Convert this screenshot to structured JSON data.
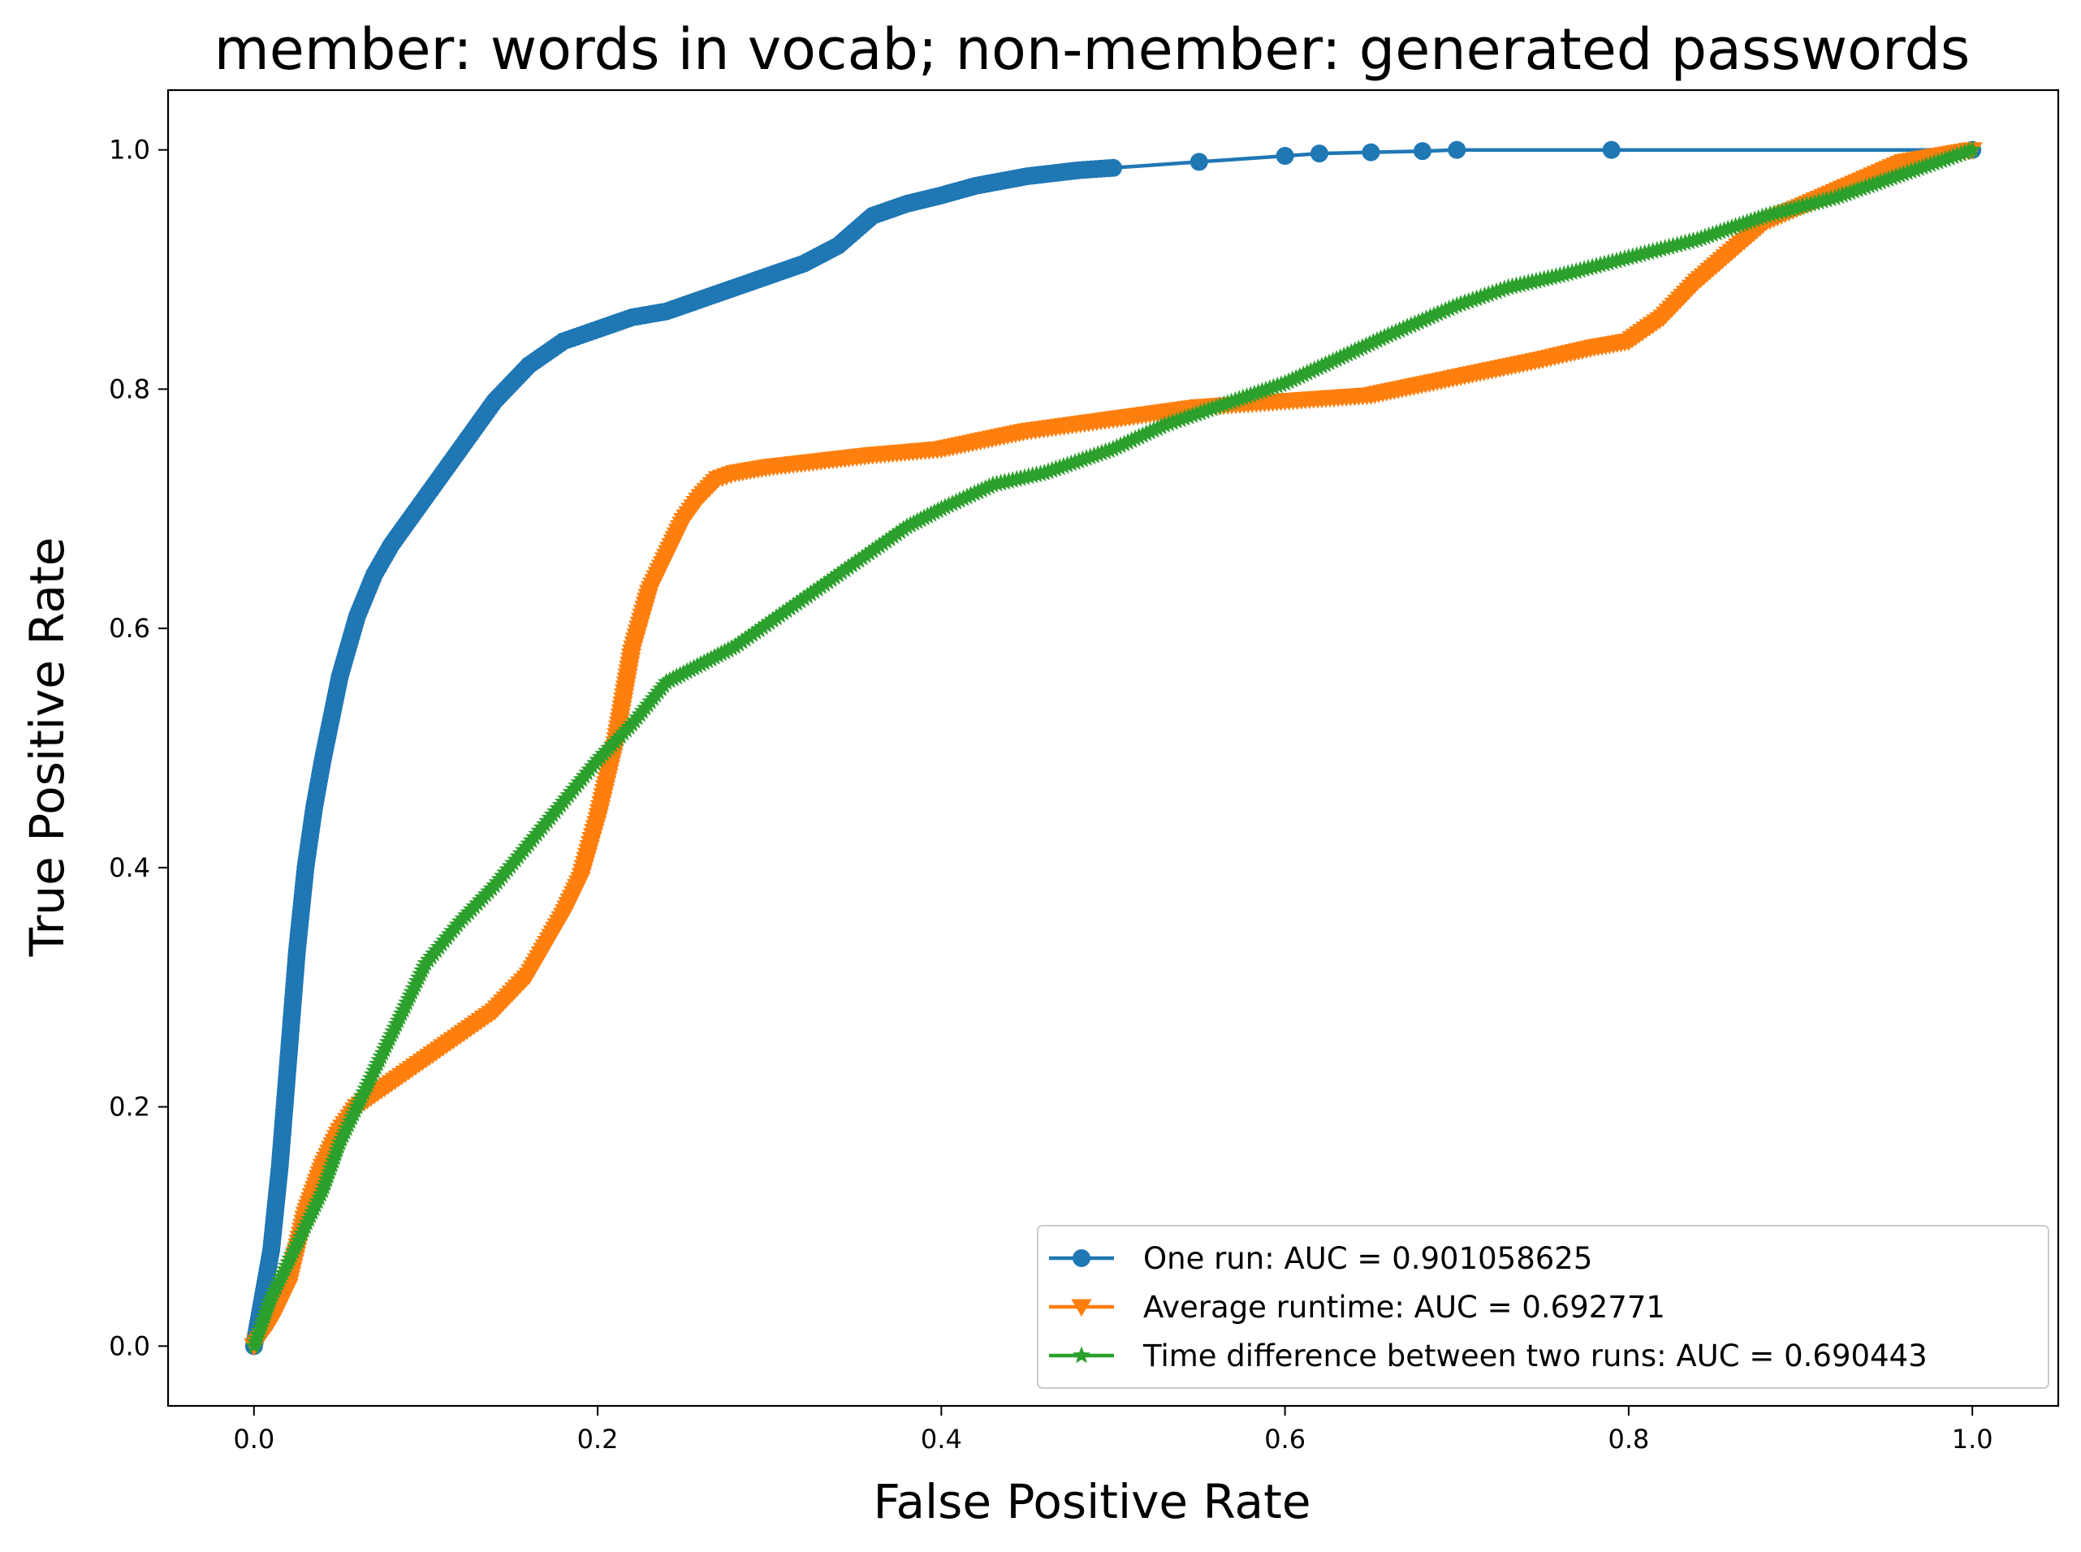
{
  "chart_data": {
    "type": "line",
    "title": "member: words in vocab; non-member: generated passwords",
    "xlabel": "False Positive Rate",
    "ylabel": "True Positive Rate",
    "xlim": [
      -0.05,
      1.05
    ],
    "ylim": [
      -0.05,
      1.05
    ],
    "xticks": [
      0.0,
      0.2,
      0.4,
      0.6,
      0.8,
      1.0
    ],
    "yticks": [
      0.0,
      0.2,
      0.4,
      0.6,
      0.8,
      1.0
    ],
    "xtick_labels": [
      "0.0",
      "0.2",
      "0.4",
      "0.6",
      "0.8",
      "1.0"
    ],
    "ytick_labels": [
      "0.0",
      "0.2",
      "0.4",
      "0.6",
      "0.8",
      "1.0"
    ],
    "grid": false,
    "legend_position": "lower-right",
    "series": [
      {
        "name": "One run: AUC = 0.901058625",
        "color": "#1f77b4",
        "marker": "circle",
        "x": [
          0.0,
          0.005,
          0.01,
          0.015,
          0.02,
          0.025,
          0.03,
          0.035,
          0.04,
          0.05,
          0.06,
          0.07,
          0.08,
          0.09,
          0.1,
          0.11,
          0.12,
          0.13,
          0.14,
          0.15,
          0.16,
          0.17,
          0.18,
          0.19,
          0.2,
          0.22,
          0.24,
          0.26,
          0.28,
          0.3,
          0.32,
          0.34,
          0.36,
          0.38,
          0.4,
          0.42,
          0.45,
          0.48,
          0.5,
          0.55,
          0.6,
          0.62,
          0.65,
          0.68,
          0.7,
          0.79,
          1.0
        ],
        "y": [
          0.0,
          0.04,
          0.08,
          0.15,
          0.24,
          0.33,
          0.4,
          0.45,
          0.49,
          0.56,
          0.61,
          0.645,
          0.67,
          0.69,
          0.71,
          0.73,
          0.75,
          0.77,
          0.79,
          0.805,
          0.82,
          0.83,
          0.84,
          0.845,
          0.85,
          0.86,
          0.865,
          0.875,
          0.885,
          0.895,
          0.905,
          0.92,
          0.945,
          0.955,
          0.962,
          0.97,
          0.978,
          0.983,
          0.985,
          0.99,
          0.995,
          0.997,
          0.998,
          0.999,
          1.0,
          1.0,
          1.0
        ]
      },
      {
        "name": "Average runtime: AUC = 0.692771",
        "color": "#ff7f0e",
        "marker": "triangle-down",
        "x": [
          0.0,
          0.01,
          0.02,
          0.03,
          0.04,
          0.05,
          0.06,
          0.08,
          0.1,
          0.12,
          0.14,
          0.16,
          0.18,
          0.19,
          0.2,
          0.21,
          0.22,
          0.23,
          0.24,
          0.25,
          0.26,
          0.27,
          0.28,
          0.3,
          0.33,
          0.36,
          0.4,
          0.45,
          0.5,
          0.55,
          0.6,
          0.65,
          0.7,
          0.75,
          0.78,
          0.8,
          0.82,
          0.84,
          0.86,
          0.88,
          0.92,
          0.96,
          1.0
        ],
        "y": [
          0.0,
          0.02,
          0.05,
          0.11,
          0.15,
          0.18,
          0.2,
          0.22,
          0.24,
          0.26,
          0.28,
          0.31,
          0.36,
          0.39,
          0.44,
          0.5,
          0.58,
          0.63,
          0.66,
          0.69,
          0.71,
          0.725,
          0.73,
          0.735,
          0.74,
          0.745,
          0.75,
          0.765,
          0.775,
          0.785,
          0.79,
          0.795,
          0.81,
          0.825,
          0.835,
          0.84,
          0.86,
          0.89,
          0.915,
          0.94,
          0.965,
          0.99,
          1.0
        ]
      },
      {
        "name": "Time difference between two runs: AUC = 0.690443",
        "color": "#2ca02c",
        "marker": "star",
        "x": [
          0.0,
          0.01,
          0.02,
          0.03,
          0.04,
          0.05,
          0.06,
          0.08,
          0.1,
          0.12,
          0.14,
          0.16,
          0.18,
          0.2,
          0.22,
          0.24,
          0.26,
          0.28,
          0.3,
          0.32,
          0.35,
          0.38,
          0.4,
          0.43,
          0.46,
          0.5,
          0.53,
          0.56,
          0.6,
          0.63,
          0.66,
          0.7,
          0.73,
          0.76,
          0.8,
          0.84,
          0.88,
          0.92,
          0.96,
          1.0
        ],
        "y": [
          0.0,
          0.04,
          0.07,
          0.1,
          0.13,
          0.17,
          0.2,
          0.26,
          0.32,
          0.355,
          0.385,
          0.42,
          0.455,
          0.49,
          0.52,
          0.555,
          0.57,
          0.585,
          0.605,
          0.625,
          0.655,
          0.685,
          0.7,
          0.72,
          0.73,
          0.75,
          0.77,
          0.785,
          0.805,
          0.825,
          0.845,
          0.87,
          0.885,
          0.895,
          0.91,
          0.925,
          0.945,
          0.96,
          0.98,
          1.0
        ]
      }
    ]
  }
}
